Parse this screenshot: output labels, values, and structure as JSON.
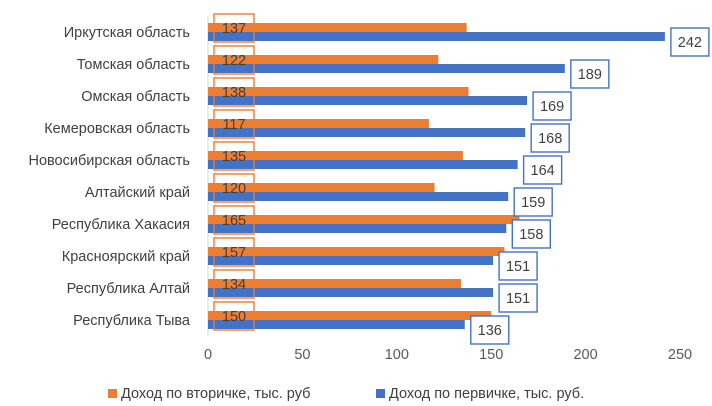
{
  "chart_data": {
    "type": "bar",
    "orientation": "horizontal",
    "categories": [
      "Иркутская область",
      "Томская область",
      "Омская область",
      "Кемеровская область",
      "Новосибирская область",
      "Алтайский край",
      "Республика Хакасия",
      "Красноярский край",
      "Республика Алтай",
      "Республика Тыва"
    ],
    "series": [
      {
        "name": "Доход по вторичке, тыс. руб",
        "values": [
          137,
          122,
          138,
          117,
          135,
          120,
          165,
          157,
          134,
          150
        ],
        "color": "#ED7D31"
      },
      {
        "name": "Доход по первичке, тыс. руб.",
        "values": [
          242,
          189,
          169,
          168,
          164,
          159,
          158,
          151,
          151,
          136
        ],
        "color": "#4472C4"
      }
    ],
    "xlim": [
      0,
      250
    ],
    "xticks": [
      0,
      50,
      100,
      150,
      200,
      250
    ],
    "grid": false,
    "legend_position": "bottom"
  }
}
